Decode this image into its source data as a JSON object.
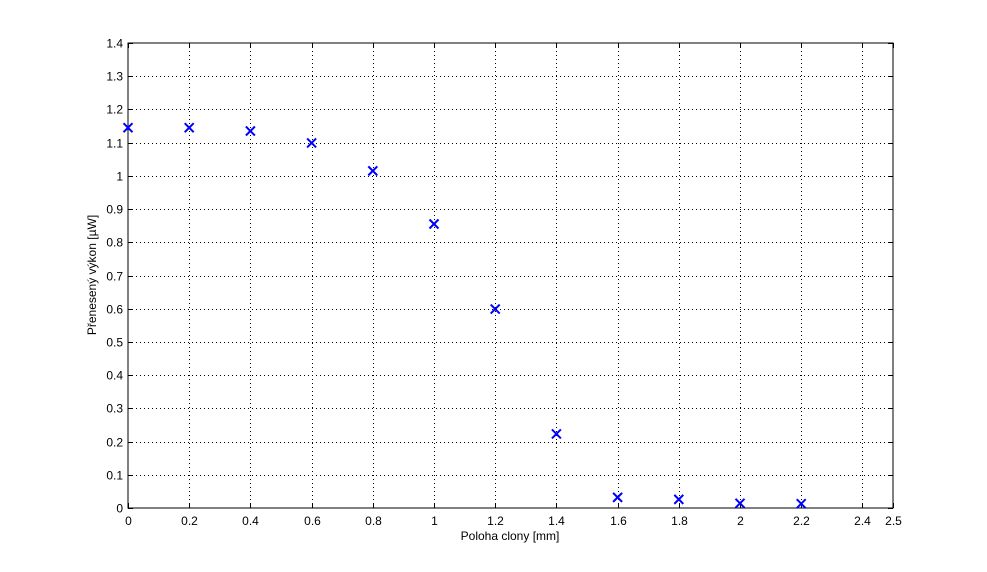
{
  "chart_data": {
    "type": "scatter",
    "title": "",
    "xlabel": "Poloha clony [mm]",
    "ylabel": "Přenesený výkon [µW]",
    "xlim": [
      0,
      2.5
    ],
    "ylim": [
      0,
      1.4
    ],
    "xticks": [
      "0",
      "0.2",
      "0.4",
      "0.6",
      "0.8",
      "1",
      "1.2",
      "1.4",
      "1.6",
      "1.8",
      "2",
      "2.2",
      "2.4",
      "2.5"
    ],
    "yticks": [
      "0",
      "0.1",
      "0.2",
      "0.3",
      "0.4",
      "0.5",
      "0.6",
      "0.7",
      "0.8",
      "0.9",
      "1",
      "1.1",
      "1.2",
      "1.3",
      "1.4"
    ],
    "grid": true,
    "marker": "x",
    "color": "#0000ff",
    "x": [
      0,
      0.2,
      0.4,
      0.6,
      0.8,
      1.0,
      1.2,
      1.4,
      1.6,
      1.8,
      2.0,
      2.2
    ],
    "y": [
      1.145,
      1.145,
      1.135,
      1.099,
      1.015,
      0.855,
      0.599,
      0.223,
      0.032,
      0.026,
      0.014,
      0.013
    ]
  }
}
